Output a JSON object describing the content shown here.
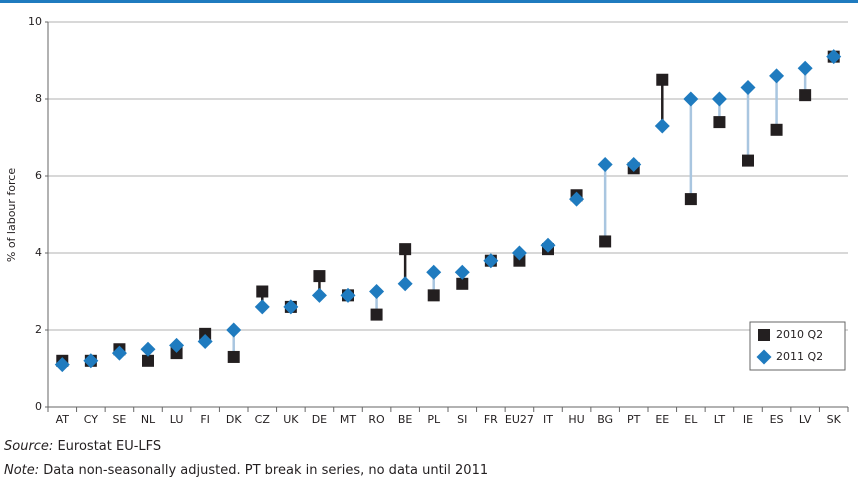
{
  "chart_data": {
    "type": "dot",
    "ylabel": "% of labour force",
    "categories": [
      "AT",
      "CY",
      "SE",
      "NL",
      "LU",
      "FI",
      "DK",
      "CZ",
      "UK",
      "DE",
      "MT",
      "RO",
      "BE",
      "PL",
      "SI",
      "FR",
      "EU27",
      "IT",
      "HU",
      "BG",
      "PT",
      "EE",
      "EL",
      "LT",
      "IE",
      "ES",
      "LV",
      "SK"
    ],
    "series": [
      {
        "name": "2010 Q2",
        "color": "#231f20",
        "marker": "square",
        "values": [
          1.2,
          1.2,
          1.5,
          1.2,
          1.4,
          1.9,
          1.3,
          3.0,
          2.6,
          3.4,
          2.9,
          2.4,
          4.1,
          2.9,
          3.2,
          3.8,
          3.8,
          4.1,
          5.5,
          4.3,
          6.2,
          8.5,
          5.4,
          7.4,
          6.4,
          7.2,
          8.1,
          9.1
        ]
      },
      {
        "name": "2011 Q2",
        "color": "#1f7bbf",
        "marker": "diamond",
        "values": [
          1.1,
          1.2,
          1.4,
          1.5,
          1.6,
          1.7,
          2.0,
          2.6,
          2.6,
          2.9,
          2.9,
          3.0,
          3.2,
          3.5,
          3.5,
          3.8,
          4.0,
          4.2,
          5.4,
          6.3,
          6.3,
          7.3,
          8.0,
          8.0,
          8.3,
          8.6,
          8.8,
          9.1
        ]
      }
    ],
    "ylim": [
      0,
      10
    ],
    "yticks": [
      0,
      2,
      4,
      6,
      8,
      10
    ],
    "grid": true,
    "legend": "lower right",
    "source_label": "Source:",
    "source": "Eurostat EU-LFS",
    "note_label": "Note:",
    "note": "Data non-seasonally adjusted. PT break in series, no data until 2011"
  }
}
